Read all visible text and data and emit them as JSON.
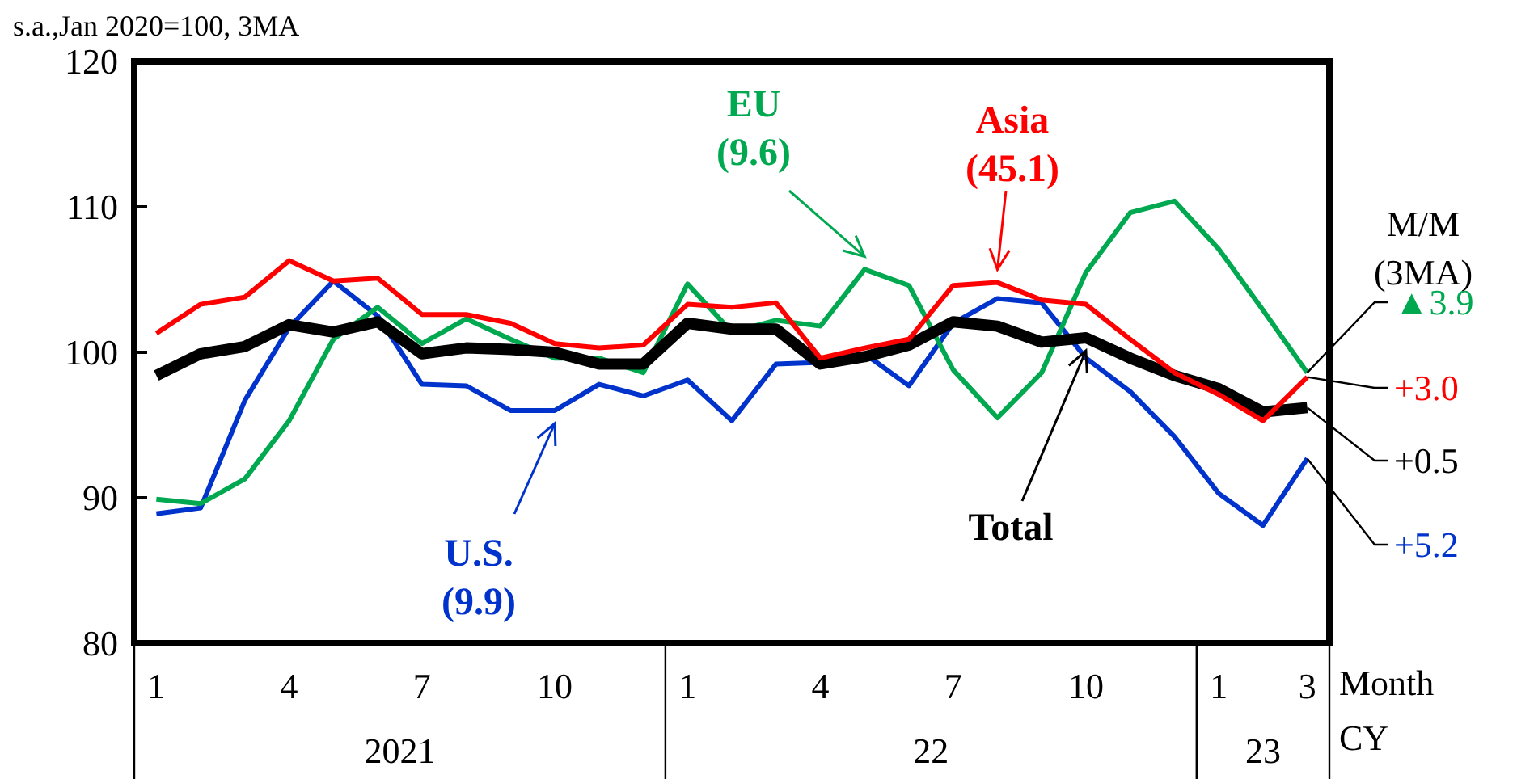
{
  "chart_data": {
    "type": "line",
    "ylabel": "s.a.,Jan 2020=100, 3MA",
    "categories": [
      "1",
      null,
      null,
      "4",
      null,
      null,
      "7",
      null,
      null,
      "10",
      null,
      null,
      "1",
      null,
      null,
      "4",
      null,
      null,
      "7",
      null,
      null,
      "10",
      null,
      null,
      "1",
      null,
      "3"
    ],
    "series": [
      {
        "name": "U.S.",
        "color": "#0033cc",
        "values": [
          88.9,
          89.3,
          96.7,
          101.7,
          104.9,
          102.5,
          97.8,
          97.7,
          96.0,
          96.0,
          97.8,
          97.0,
          98.1,
          95.3,
          99.2,
          99.3,
          99.9,
          97.7,
          102.0,
          103.7,
          103.4,
          99.6,
          97.3,
          94.2,
          90.3,
          88.1,
          92.7
        ]
      },
      {
        "name": "EU",
        "color": "#00a850",
        "values": [
          89.9,
          89.6,
          91.3,
          95.3,
          100.9,
          103.1,
          100.6,
          102.3,
          100.9,
          99.6,
          99.6,
          98.6,
          104.7,
          101.4,
          102.2,
          101.8,
          105.7,
          104.6,
          98.8,
          95.5,
          98.6,
          105.5,
          109.6,
          110.4,
          107.1,
          102.9,
          98.6
        ]
      },
      {
        "name": "Total",
        "color": "#000000",
        "values": [
          98.4,
          99.9,
          100.4,
          101.9,
          101.4,
          102.1,
          99.9,
          100.3,
          100.2,
          100.0,
          99.2,
          99.2,
          102.0,
          101.6,
          101.6,
          99.2,
          99.7,
          100.5,
          102.1,
          101.8,
          100.7,
          101.0,
          99.6,
          98.4,
          97.5,
          95.9,
          96.2
        ]
      },
      {
        "name": "Asia",
        "color": "#ff0000",
        "values": [
          101.3,
          103.3,
          103.8,
          106.3,
          104.9,
          105.1,
          102.6,
          102.6,
          102.0,
          100.6,
          100.3,
          100.5,
          103.3,
          103.1,
          103.4,
          99.6,
          100.3,
          100.9,
          104.6,
          104.8,
          103.6,
          103.3,
          100.9,
          98.6,
          97.1,
          95.3,
          98.3
        ]
      }
    ],
    "ylim": [
      80,
      120
    ],
    "yticks": [
      80,
      90,
      100,
      110,
      120
    ],
    "grid": false,
    "marker": "none",
    "line_style": "solid",
    "annotations": [
      "(9.9)",
      "(9.6)",
      "(45.1)",
      {
        "text": "+5.2",
        "x": "3",
        "y": 92.7
      },
      {
        "text": "▲3.9",
        "x": "3",
        "y": 98.6
      },
      {
        "text": "+0.5",
        "x": "3",
        "y": 96.2
      },
      {
        "text": "+3.0",
        "x": "3",
        "y": 98.3
      },
      "M/M",
      "(3MA)",
      "2021",
      "22",
      "23",
      "Month",
      "CY"
    ]
  }
}
